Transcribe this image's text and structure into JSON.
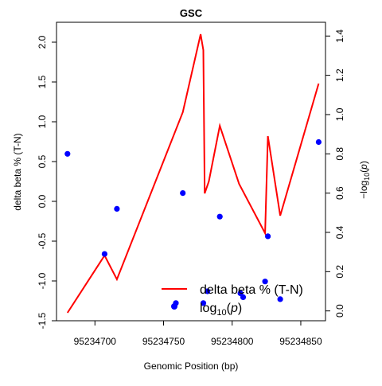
{
  "chart_data": {
    "type": "line",
    "title": "GSC",
    "xlabel": "Genomic Position (bp)",
    "ylabel_left": "delta beta % (T-N)",
    "ylabel_right": "-log10(p)",
    "xlim": [
      95234672,
      95234868
    ],
    "ylim_left": [
      -1.5,
      2.25
    ],
    "ylim_right": [
      -0.05,
      1.47
    ],
    "x_ticks": [
      95234700,
      95234750,
      95234800,
      95234850
    ],
    "y_ticks_left": [
      -1.5,
      -1.0,
      -0.5,
      0.0,
      0.5,
      1.0,
      1.5,
      2.0
    ],
    "y_ticks_right": [
      0.0,
      0.2,
      0.4,
      0.6,
      0.8,
      1.0,
      1.2,
      1.4
    ],
    "x_tick_labels": [
      "95234700",
      "95234750",
      "95234800",
      "95234850"
    ],
    "y_tick_labels_left": [
      "-1.5",
      "-1.0",
      "-0.5",
      "0.0",
      "0.5",
      "1.0",
      "1.5",
      "2.0"
    ],
    "y_tick_labels_right": [
      "0.0",
      "0.2",
      "0.4",
      "0.6",
      "0.8",
      "1.0",
      "1.2",
      "1.4"
    ],
    "grid": false,
    "legend_position": "bottom-right",
    "series": [
      {
        "name": "delta beta % (T-N)",
        "axis": "left",
        "style": "line",
        "color": "#ff0000",
        "x": [
          95234680,
          95234707,
          95234716,
          95234764,
          95234777,
          95234779,
          95234780,
          95234783,
          95234791,
          95234805,
          95234824,
          95234826,
          95234835,
          95234863
        ],
        "y": [
          -1.4,
          -0.68,
          -0.98,
          1.12,
          2.1,
          1.9,
          0.1,
          0.25,
          0.95,
          0.22,
          -0.4,
          0.82,
          -0.18,
          1.48
        ]
      },
      {
        "name": "log10(p)",
        "axis": "right",
        "style": "points",
        "color": "#0000ff",
        "x": [
          95234680,
          95234707,
          95234716,
          95234759,
          95234764,
          95234779,
          95234782,
          95234791,
          95234806,
          95234808,
          95234824,
          95234826,
          95234835,
          95234863
        ],
        "y": [
          0.8,
          0.29,
          0.52,
          0.04,
          0.6,
          0.04,
          0.1,
          0.48,
          0.09,
          0.07,
          0.15,
          0.38,
          0.06,
          0.86
        ]
      }
    ]
  },
  "legend": {
    "entries": [
      {
        "label": "delta beta % (T-N)",
        "color": "#ff0000",
        "mark": "line"
      },
      {
        "label": "log10(p)",
        "color": "#0000ff",
        "mark": "point"
      }
    ]
  }
}
